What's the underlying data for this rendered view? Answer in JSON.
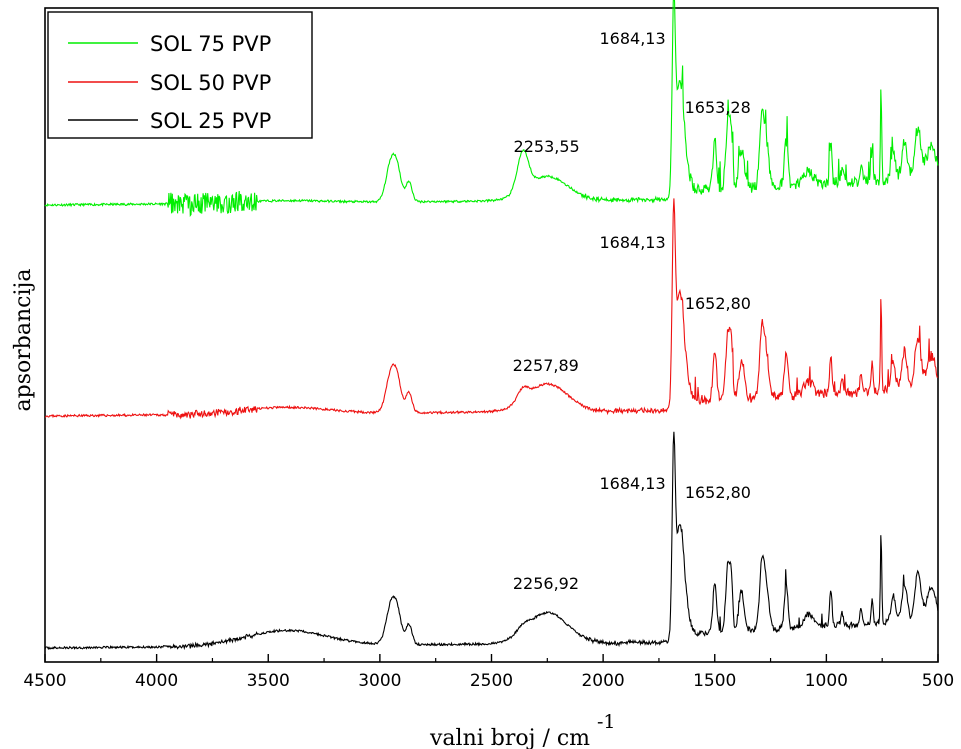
{
  "chart_data": {
    "type": "line",
    "xlabel": "valni broj / cm",
    "xlabel_superscript": "-1",
    "ylabel": "apsorbancija",
    "xlim": [
      4500,
      500
    ],
    "x_reversed": true,
    "xticks": [
      4500,
      4000,
      3500,
      3000,
      2500,
      2000,
      1500,
      1000,
      500
    ],
    "y_ticks_shown": false,
    "grid": false,
    "legend_position": "top-left",
    "series": [
      {
        "name": "SOL 75 PVP",
        "color": "#00ee00",
        "annotations": [
          "1684,13",
          "1653,28",
          "2253,55"
        ]
      },
      {
        "name": "SOL 50 PVP",
        "color": "#ee1111",
        "annotations": [
          "1684,13",
          "1652,80",
          "2257,89"
        ]
      },
      {
        "name": "SOL 25 PVP",
        "color": "#000000",
        "annotations": [
          "1684,13",
          "1652,80",
          "2256,92"
        ]
      }
    ]
  }
}
